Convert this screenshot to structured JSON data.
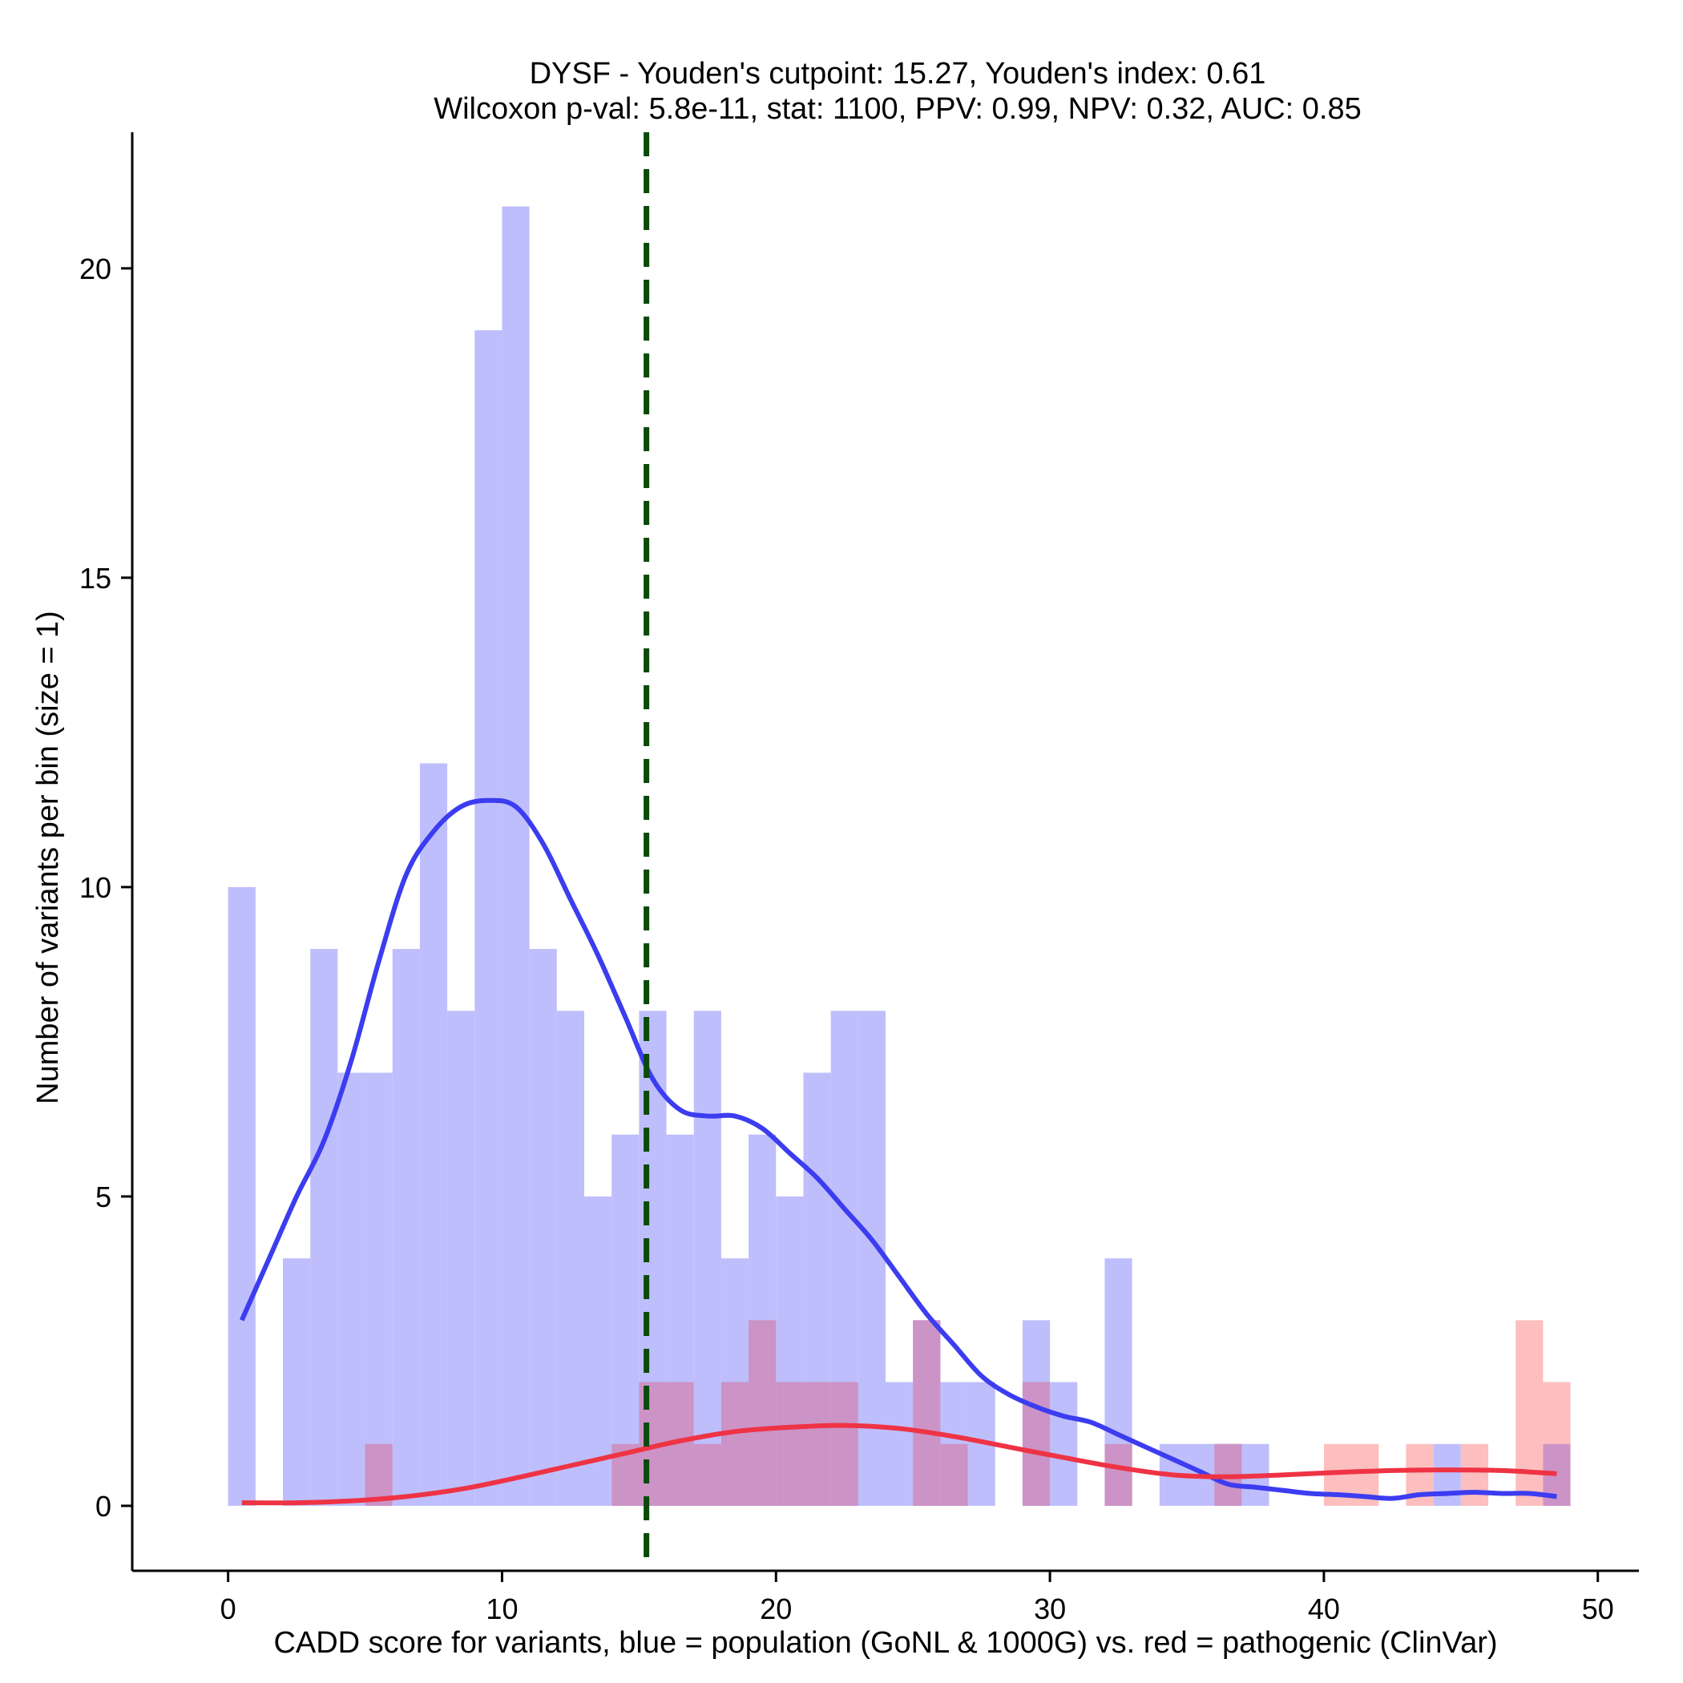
{
  "chart_data": {
    "type": "histogram",
    "title_line1": "DYSF - Youden's cutpoint: 15.27, Youden's index: 0.61",
    "title_line2": "Wilcoxon p-val: 5.8e-11, stat: 1100, PPV: 0.99, NPV: 0.32, AUC: 0.85",
    "xlabel": "CADD score for variants, blue = population (GoNL & 1000G) vs. red = pathogenic (ClinVar)",
    "ylabel": "Number of variants per bin (size = 1)",
    "xlim": [
      -3.5,
      51.5
    ],
    "ylim": [
      -1.05,
      22.2
    ],
    "x_ticks": [
      0,
      10,
      20,
      30,
      40,
      50
    ],
    "y_ticks": [
      0,
      5,
      10,
      15,
      20
    ],
    "bin_width": 1,
    "cutpoint": 15.27,
    "colors": {
      "population_bar": "#bebefc",
      "pathogenic_bar": "#fcbebe",
      "overlap_bar": "#cc93c6",
      "population_line": "#3c3cf0",
      "pathogenic_line": "#ee3344",
      "cutpoint_line": "#0b4a0b"
    },
    "series": [
      {
        "name": "population (GoNL & 1000G)",
        "bin_starts": [
          0,
          1,
          2,
          3,
          4,
          5,
          6,
          7,
          8,
          9,
          10,
          11,
          12,
          13,
          14,
          15,
          16,
          17,
          18,
          19,
          20,
          21,
          22,
          23,
          24,
          25,
          26,
          27,
          28,
          29,
          30,
          31,
          32,
          33,
          34,
          35,
          36,
          37,
          38,
          39,
          40,
          41,
          42,
          43,
          44,
          45,
          46,
          47,
          48
        ],
        "counts": [
          10,
          0,
          4,
          9,
          7,
          7,
          9,
          12,
          8,
          19,
          21,
          9,
          8,
          5,
          6,
          8,
          6,
          8,
          4,
          6,
          5,
          7,
          8,
          8,
          2,
          3,
          2,
          2,
          0,
          3,
          2,
          0,
          4,
          0,
          1,
          1,
          1,
          1,
          0,
          0,
          0,
          0,
          0,
          0,
          1,
          0,
          0,
          0,
          1
        ]
      },
      {
        "name": "pathogenic (ClinVar)",
        "bin_starts": [
          0,
          1,
          2,
          3,
          4,
          5,
          6,
          7,
          8,
          9,
          10,
          11,
          12,
          13,
          14,
          15,
          16,
          17,
          18,
          19,
          20,
          21,
          22,
          23,
          24,
          25,
          26,
          27,
          28,
          29,
          30,
          31,
          32,
          33,
          34,
          35,
          36,
          37,
          38,
          39,
          40,
          41,
          42,
          43,
          44,
          45,
          46,
          47,
          48
        ],
        "counts": [
          0,
          0,
          0,
          0,
          0,
          1,
          0,
          0,
          0,
          0,
          0,
          0,
          0,
          0,
          1,
          2,
          2,
          1,
          2,
          3,
          2,
          2,
          2,
          0,
          0,
          3,
          1,
          0,
          0,
          2,
          0,
          0,
          1,
          0,
          0,
          0,
          1,
          0,
          0,
          0,
          1,
          1,
          0,
          1,
          0,
          1,
          0,
          3,
          2
        ]
      }
    ],
    "density_curves": [
      {
        "name": "population density",
        "x": [
          0,
          1,
          2,
          3,
          4,
          5,
          6,
          7,
          8,
          9,
          10,
          11,
          12,
          13,
          14,
          15,
          16,
          17,
          18,
          19,
          20,
          21,
          22,
          23,
          24,
          25,
          26,
          27,
          28,
          29,
          30,
          31,
          32,
          33,
          34,
          35,
          36,
          37,
          38,
          39,
          40,
          41,
          42,
          43,
          44,
          45,
          46,
          47,
          48
        ],
        "y": [
          3.0,
          4.0,
          5.0,
          5.9,
          7.2,
          8.8,
          10.2,
          10.9,
          11.3,
          11.4,
          11.3,
          10.7,
          9.8,
          8.9,
          7.9,
          6.9,
          6.4,
          6.3,
          6.3,
          6.1,
          5.7,
          5.3,
          4.8,
          4.3,
          3.7,
          3.1,
          2.6,
          2.1,
          1.8,
          1.6,
          1.45,
          1.35,
          1.15,
          0.95,
          0.75,
          0.55,
          0.35,
          0.3,
          0.25,
          0.2,
          0.18,
          0.15,
          0.12,
          0.18,
          0.2,
          0.22,
          0.2,
          0.2,
          0.15
        ]
      },
      {
        "name": "pathogenic density",
        "x": [
          0,
          2,
          4,
          6,
          8,
          10,
          12,
          14,
          16,
          18,
          20,
          22,
          24,
          26,
          28,
          30,
          32,
          34,
          36,
          38,
          40,
          42,
          44,
          46,
          48
        ],
        "y": [
          0.05,
          0.05,
          0.08,
          0.15,
          0.27,
          0.45,
          0.65,
          0.85,
          1.05,
          1.2,
          1.27,
          1.3,
          1.25,
          1.12,
          0.95,
          0.78,
          0.62,
          0.5,
          0.47,
          0.5,
          0.54,
          0.57,
          0.58,
          0.57,
          0.52
        ]
      }
    ]
  }
}
